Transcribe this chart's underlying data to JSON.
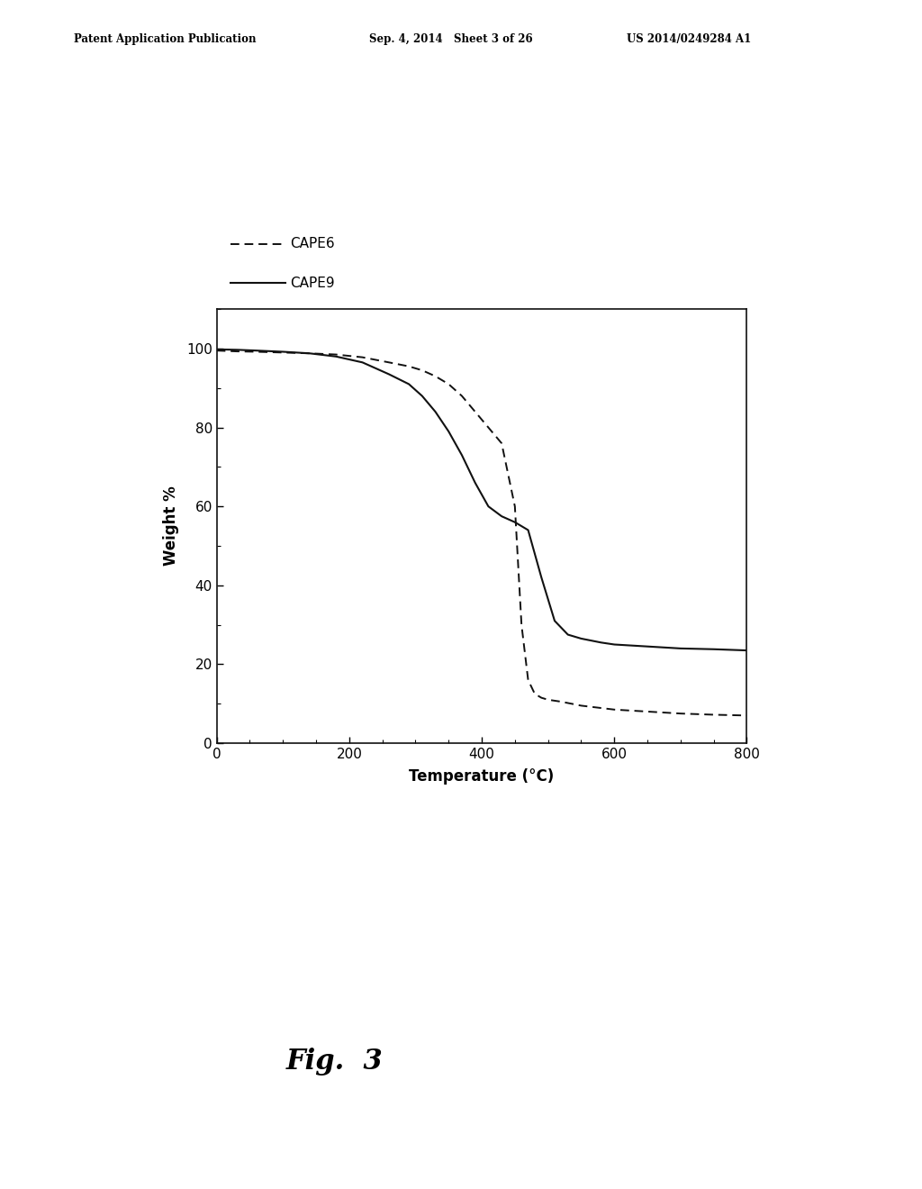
{
  "header_left": "Patent Application Publication",
  "header_mid": "Sep. 4, 2014   Sheet 3 of 26",
  "header_right": "US 2014/0249284 A1",
  "figure_label": "Fig.  3",
  "xlabel": "Temperature (°C)",
  "ylabel": "Weight %",
  "xlim": [
    0,
    800
  ],
  "ylim": [
    0,
    110
  ],
  "yticks": [
    0,
    20,
    40,
    60,
    80,
    100
  ],
  "xticks": [
    0,
    200,
    400,
    600,
    800
  ],
  "legend_labels": [
    "CAPE6",
    "CAPE9"
  ],
  "bg_color": "#ffffff",
  "line_color": "#111111",
  "cape6_x": [
    0,
    30,
    60,
    100,
    140,
    180,
    220,
    260,
    290,
    310,
    330,
    350,
    370,
    390,
    410,
    430,
    450,
    460,
    470,
    480,
    490,
    500,
    520,
    550,
    600,
    650,
    700,
    750,
    800
  ],
  "cape6_y": [
    99.5,
    99.3,
    99.2,
    99.0,
    98.8,
    98.5,
    97.8,
    96.5,
    95.5,
    94.5,
    93.0,
    91.0,
    88.0,
    84.0,
    80.0,
    76.0,
    60.0,
    30.0,
    16.0,
    12.5,
    11.5,
    11.0,
    10.5,
    9.5,
    8.5,
    8.0,
    7.5,
    7.2,
    7.0
  ],
  "cape9_x": [
    0,
    30,
    60,
    100,
    140,
    180,
    220,
    260,
    290,
    310,
    330,
    350,
    370,
    390,
    410,
    430,
    450,
    470,
    490,
    510,
    530,
    550,
    580,
    600,
    650,
    700,
    750,
    800
  ],
  "cape9_y": [
    99.8,
    99.7,
    99.5,
    99.2,
    98.8,
    98.0,
    96.5,
    93.5,
    91.0,
    88.0,
    84.0,
    79.0,
    73.0,
    66.0,
    60.0,
    57.5,
    56.0,
    54.0,
    42.0,
    31.0,
    27.5,
    26.5,
    25.5,
    25.0,
    24.5,
    24.0,
    23.8,
    23.5
  ]
}
